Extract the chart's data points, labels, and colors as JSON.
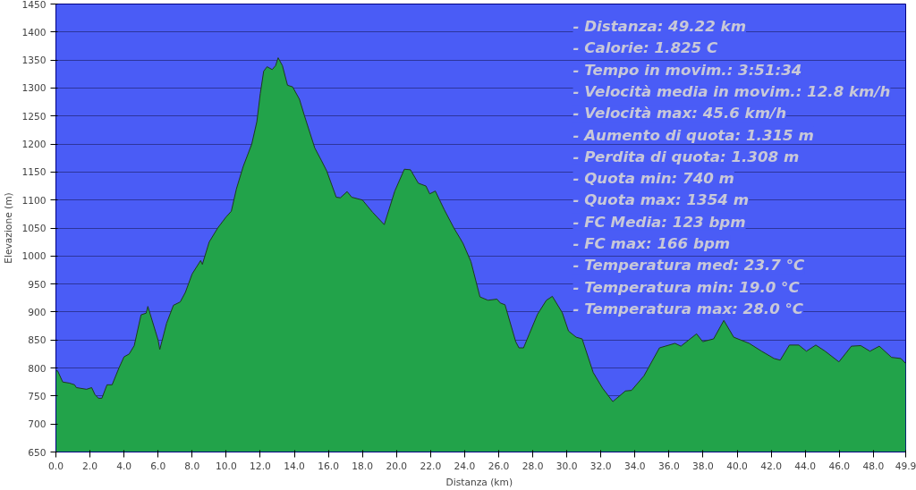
{
  "chart_data": {
    "type": "area",
    "xlabel": "Distanza  (km)",
    "ylabel": "Elevazione (m)",
    "xlim": [
      0,
      49.9
    ],
    "ylim": [
      650,
      1450
    ],
    "xticks": [
      {
        "value": 0,
        "label": "0.0"
      },
      {
        "value": 2,
        "label": "2.0"
      },
      {
        "value": 4,
        "label": "4.0"
      },
      {
        "value": 6,
        "label": "6.0"
      },
      {
        "value": 8,
        "label": "8.0"
      },
      {
        "value": 10,
        "label": "10.0"
      },
      {
        "value": 12,
        "label": "12.0"
      },
      {
        "value": 14,
        "label": "14.0"
      },
      {
        "value": 16,
        "label": "16.0"
      },
      {
        "value": 18,
        "label": "18.0"
      },
      {
        "value": 20,
        "label": "20.0"
      },
      {
        "value": 22,
        "label": "22.0"
      },
      {
        "value": 24,
        "label": "24.0"
      },
      {
        "value": 26,
        "label": "26.0"
      },
      {
        "value": 28,
        "label": "28.0"
      },
      {
        "value": 30,
        "label": "30.0"
      },
      {
        "value": 32,
        "label": "32.0"
      },
      {
        "value": 34,
        "label": "34.0"
      },
      {
        "value": 36,
        "label": "36.0"
      },
      {
        "value": 38,
        "label": "38.0"
      },
      {
        "value": 40,
        "label": "40.0"
      },
      {
        "value": 42,
        "label": "42.0"
      },
      {
        "value": 44,
        "label": "44.0"
      },
      {
        "value": 46,
        "label": "46.0"
      },
      {
        "value": 48,
        "label": "48.0"
      },
      {
        "value": 49.9,
        "label": "49.9"
      }
    ],
    "yticks": [
      650,
      700,
      750,
      800,
      850,
      900,
      950,
      1000,
      1050,
      1100,
      1150,
      1200,
      1250,
      1300,
      1350,
      1400,
      1450
    ],
    "grid": "y",
    "x": [
      0.0,
      0.1,
      0.4,
      0.8,
      1.1,
      1.2,
      1.8,
      2.1,
      2.3,
      2.5,
      2.7,
      3.0,
      3.3,
      3.7,
      4.0,
      4.3,
      4.6,
      5.0,
      5.3,
      5.4,
      5.6,
      6.0,
      6.1,
      6.5,
      6.9,
      7.3,
      7.6,
      8.0,
      8.5,
      8.6,
      9.0,
      9.5,
      10.0,
      10.3,
      10.6,
      11.0,
      11.5,
      11.8,
      12.0,
      12.2,
      12.4,
      12.7,
      12.9,
      13.05,
      13.3,
      13.6,
      13.9,
      14.3,
      14.6,
      15.2,
      15.6,
      15.9,
      16.46,
      16.7,
      17.1,
      17.37,
      18.0,
      18.6,
      19.28,
      19.9,
      20.46,
      20.82,
      21.28,
      21.73,
      21.95,
      22.28,
      22.8,
      23.37,
      23.9,
      24.37,
      24.9,
      25.37,
      25.9,
      26.1,
      26.37,
      27.0,
      27.19,
      27.46,
      27.8,
      28.28,
      28.8,
      29.15,
      29.73,
      30.1,
      30.55,
      30.9,
      31.55,
      32.1,
      32.7,
      33.44,
      33.8,
      34.53,
      35.44,
      36.35,
      36.7,
      37.62,
      37.98,
      38.62,
      39.22,
      39.8,
      40.71,
      41.44,
      42.17,
      42.53,
      43.07,
      43.62,
      44.07,
      44.62,
      45.17,
      45.98,
      46.71,
      47.26,
      47.8,
      48.35,
      49.07,
      49.62,
      49.9
    ],
    "series": [
      {
        "color": "#22a34a",
        "values": [
          795,
          795,
          775,
          773,
          770,
          765,
          762,
          765,
          752,
          746,
          746,
          770,
          770,
          800,
          820,
          825,
          840,
          895,
          898,
          910,
          890,
          850,
          833,
          880,
          912,
          918,
          935,
          968,
          992,
          985,
          1025,
          1050,
          1070,
          1080,
          1120,
          1160,
          1200,
          1240,
          1290,
          1330,
          1338,
          1333,
          1340,
          1354,
          1340,
          1305,
          1302,
          1280,
          1250,
          1193,
          1170,
          1152,
          1105,
          1104,
          1115,
          1105,
          1100,
          1078,
          1056,
          1116,
          1155,
          1154,
          1130,
          1125,
          1111,
          1116,
          1083,
          1050,
          1023,
          990,
          927,
          921,
          923,
          916,
          913,
          847,
          836,
          836,
          861,
          896,
          921,
          928,
          899,
          866,
          855,
          852,
          792,
          764,
          740,
          759,
          760,
          786,
          836,
          844,
          839,
          861,
          847,
          852,
          885,
          855,
          844,
          830,
          817,
          814,
          841,
          841,
          830,
          841,
          830,
          811,
          839,
          840,
          830,
          839,
          819,
          817,
          808
        ]
      }
    ],
    "annotations": [
      "- Distanza: 49.22 km",
      "- Calorie: 1.825 C",
      "- Tempo in movim.: 3:51:34",
      "- Velocità media in movim.: 12.8 km/h",
      "- Velocità max: 45.6 km/h",
      "- Aumento di quota: 1.315 m",
      "- Perdita di quota: 1.308 m",
      "- Quota min: 740 m",
      "- Quota max: 1354 m",
      "- FC Media: 123 bpm",
      "- FC max: 166 bpm",
      "- Temperatura med: 23.7 °C",
      "- Temperatura min: 19.0 °C",
      "- Temperatura max: 28.0 °C"
    ]
  }
}
